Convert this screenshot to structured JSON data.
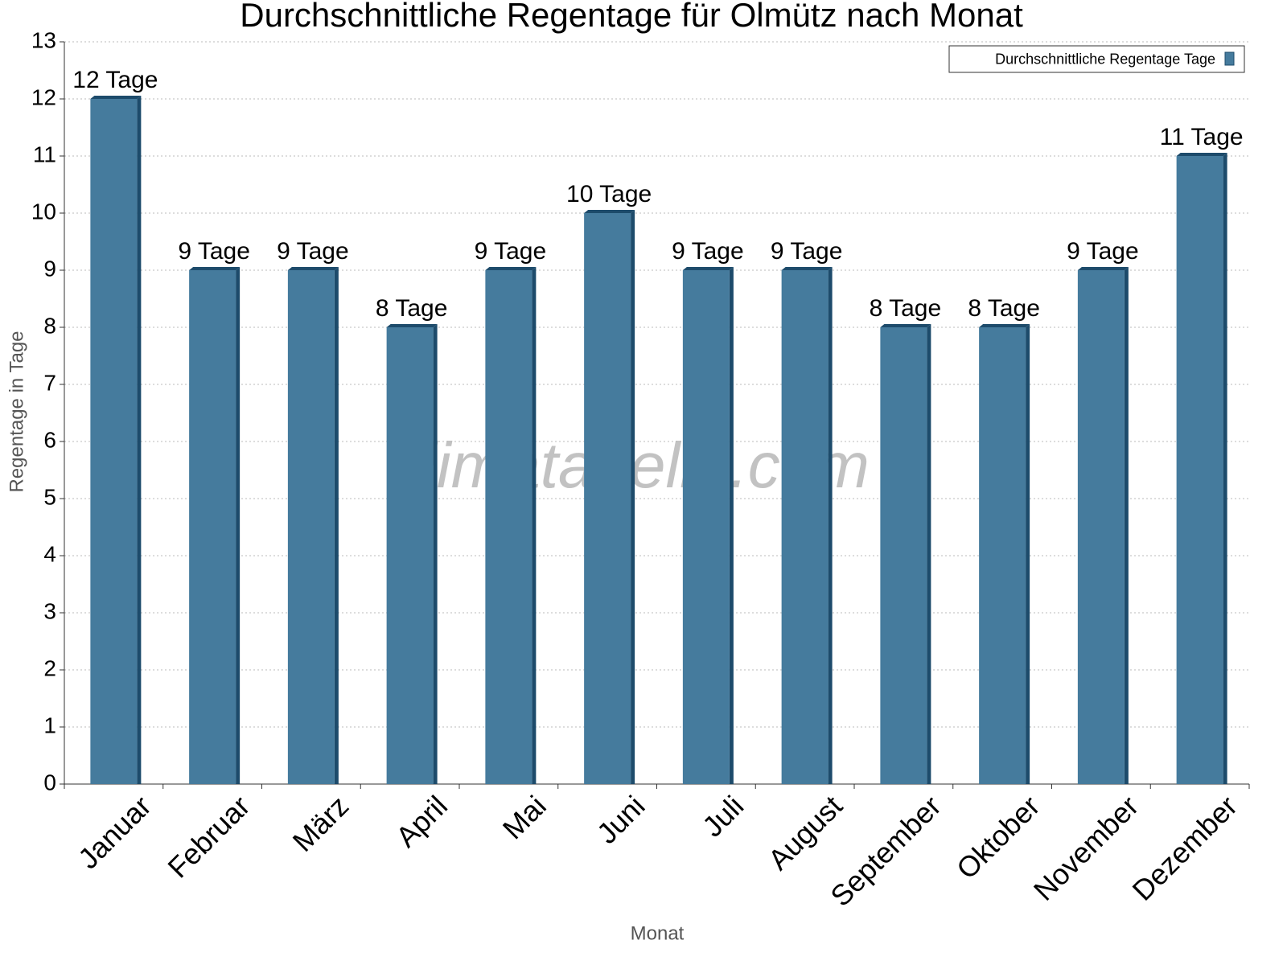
{
  "chart_data": {
    "type": "bar",
    "title": "Durchschnittliche Regentage für Olmütz nach Monat",
    "x_label": "Monat",
    "y_label": "Regentage in Tage",
    "watermark": "klimatabelle.com",
    "categories": [
      "Januar",
      "Februar",
      "März",
      "April",
      "Mai",
      "Juni",
      "Juli",
      "August",
      "September",
      "Oktober",
      "November",
      "Dezember"
    ],
    "series": [
      {
        "name": "Durchschnittliche Regentage Tage",
        "color": "#457b9d",
        "values": [
          12,
          9,
          9,
          8,
          9,
          10,
          9,
          9,
          8,
          8,
          9,
          11
        ],
        "value_labels": [
          "12 Tage",
          "9 Tage",
          "9 Tage",
          "8 Tage",
          "9 Tage",
          "10 Tage",
          "9 Tage",
          "9 Tage",
          "8 Tage",
          "8 Tage",
          "9 Tage",
          "11 Tage"
        ]
      }
    ],
    "ylim": [
      0,
      13
    ],
    "yticks": [
      0,
      1,
      2,
      3,
      4,
      5,
      6,
      7,
      8,
      9,
      10,
      11,
      12,
      13
    ],
    "grid": true,
    "legend": "top-right"
  }
}
